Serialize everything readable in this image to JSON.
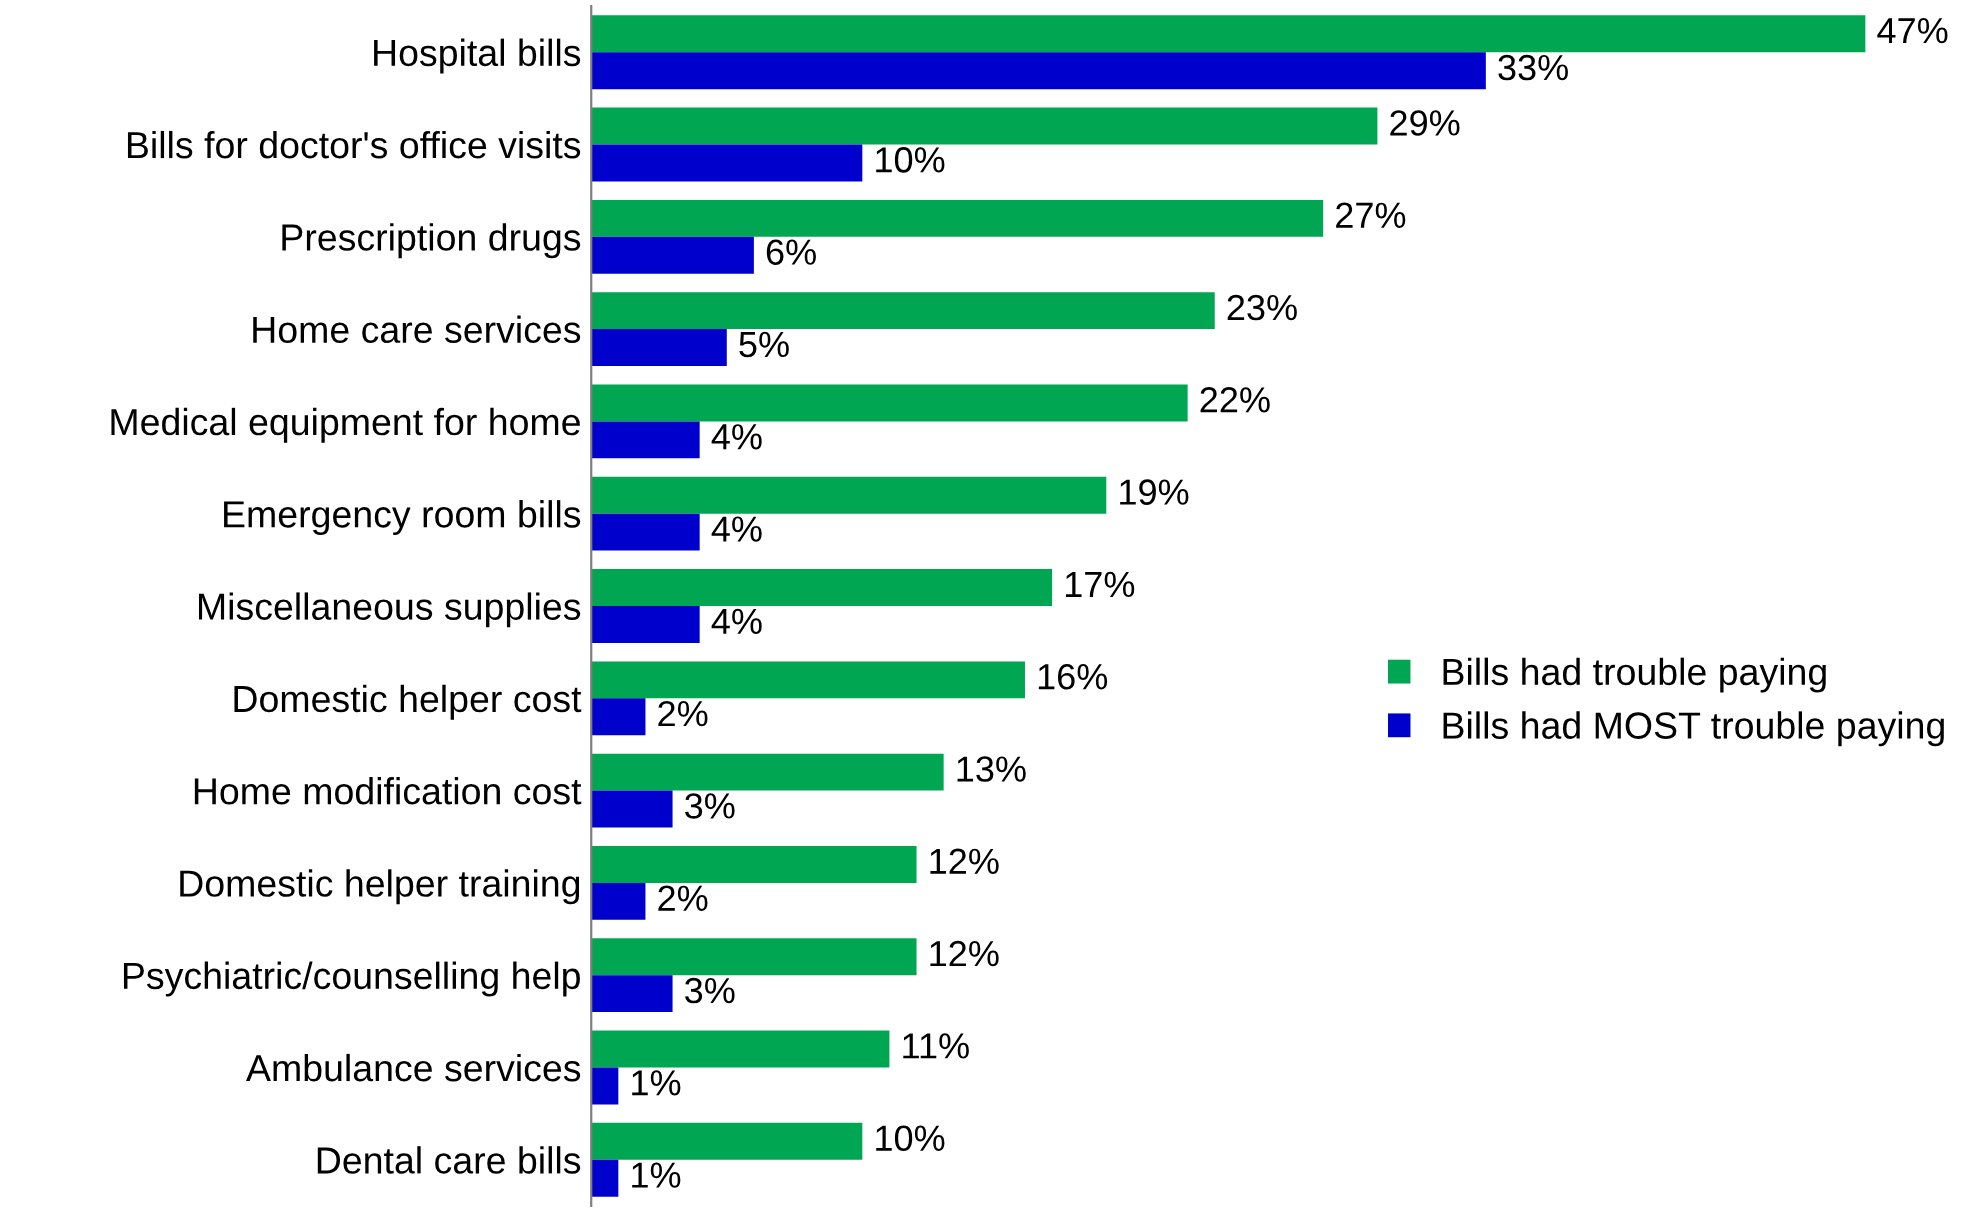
{
  "chart_data": {
    "type": "bar",
    "orientation": "horizontal",
    "categories": [
      "Hospital bills",
      "Bills for doctor's office visits",
      "Prescription drugs",
      "Home care services",
      "Medical equipment for home",
      "Emergency room bills",
      "Miscellaneous supplies",
      "Domestic helper cost",
      "Home modification cost",
      "Domestic helper training",
      "Psychiatric/counselling help",
      "Ambulance services",
      "Dental care bills"
    ],
    "series": [
      {
        "name": "Bills had trouble paying",
        "color": "#00a651",
        "values": [
          47,
          29,
          27,
          23,
          22,
          19,
          17,
          16,
          13,
          12,
          12,
          11,
          10
        ],
        "value_labels": [
          "47%",
          "29%",
          "27%",
          "23%",
          "22%",
          "19%",
          "17%",
          "16%",
          "13%",
          "12%",
          "12%",
          "11%",
          "10%"
        ]
      },
      {
        "name": "Bills had MOST trouble paying",
        "color": "#0000cc",
        "values": [
          33,
          10,
          6,
          5,
          4,
          4,
          4,
          2,
          3,
          2,
          3,
          1,
          1
        ],
        "value_labels": [
          "33%",
          "10%",
          "6%",
          "5%",
          "4%",
          "4%",
          "4%",
          "2%",
          "3%",
          "2%",
          "3%",
          "1%",
          "1%"
        ]
      }
    ],
    "legend": "right",
    "grid": false,
    "tick_labels": "y"
  }
}
